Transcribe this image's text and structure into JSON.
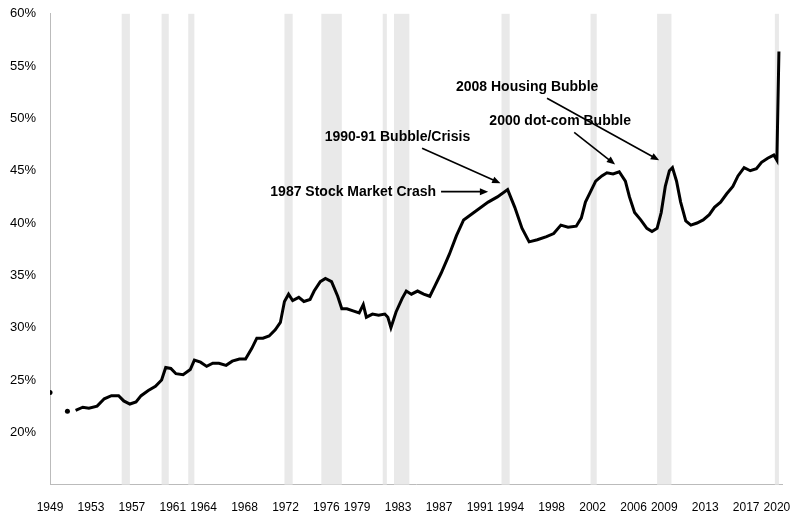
{
  "chart_data": {
    "type": "line",
    "x": [
      1949.0,
      1950.0,
      1950.7,
      1951.1,
      1951.5,
      1952.2,
      1952.8,
      1953.6,
      1954.3,
      1955.0,
      1955.7,
      1956.2,
      1956.8,
      1957.4,
      1957.9,
      1958.6,
      1959.3,
      1959.9,
      1960.3,
      1960.8,
      1961.3,
      1962.0,
      1962.7,
      1963.1,
      1963.7,
      1964.3,
      1964.9,
      1965.5,
      1966.2,
      1966.8,
      1967.5,
      1968.1,
      1968.7,
      1969.2,
      1969.8,
      1970.4,
      1971.0,
      1971.5,
      1971.9,
      1972.3,
      1972.7,
      1973.3,
      1973.8,
      1974.4,
      1974.8,
      1975.4,
      1975.9,
      1976.5,
      1977.1,
      1977.5,
      1978.0,
      1978.6,
      1979.2,
      1979.6,
      1979.9,
      1980.5,
      1981.1,
      1981.7,
      1982.0,
      1982.3,
      1982.8,
      1983.4,
      1983.8,
      1984.3,
      1984.9,
      1985.5,
      1986.1,
      1986.6,
      1987.2,
      1988.0,
      1988.7,
      1989.4,
      1990.4,
      1991.8,
      1992.7,
      1993.7,
      1994.4,
      1995.1,
      1995.8,
      1996.6,
      1997.5,
      1998.2,
      1998.9,
      1999.6,
      2000.4,
      2000.9,
      2001.3,
      2001.8,
      2002.3,
      2002.9,
      2003.4,
      2004.0,
      2004.6,
      2005.2,
      2005.6,
      2006.1,
      2006.7,
      2007.3,
      2007.8,
      2008.3,
      2008.7,
      2009.1,
      2009.5,
      2009.8,
      2010.2,
      2010.6,
      2011.1,
      2011.6,
      2012.2,
      2012.8,
      2013.4,
      2013.9,
      2014.5,
      2015.1,
      2015.7,
      2016.2,
      2016.8,
      2017.4,
      2018.0,
      2018.5,
      2019.1,
      2019.7,
      2020.0,
      2020.2
    ],
    "series": [
      {
        "color": "#000000",
        "values": [
          23.8,
          null,
          22.0,
          null,
          22.1,
          22.4,
          22.3,
          22.5,
          23.2,
          23.5,
          23.5,
          23.0,
          22.7,
          22.9,
          23.5,
          24.0,
          24.4,
          25.0,
          26.2,
          26.1,
          25.6,
          25.5,
          26.0,
          26.9,
          26.7,
          26.3,
          26.6,
          26.6,
          26.4,
          26.8,
          27.0,
          27.0,
          28.0,
          29.0,
          29.0,
          29.2,
          29.8,
          30.5,
          32.5,
          33.2,
          32.6,
          32.9,
          32.5,
          32.7,
          33.5,
          34.4,
          34.7,
          34.4,
          33.0,
          31.8,
          31.8,
          31.6,
          31.4,
          32.2,
          31.0,
          31.3,
          31.2,
          31.3,
          31.0,
          30.0,
          31.5,
          32.8,
          33.5,
          33.2,
          33.5,
          33.2,
          33.0,
          34.0,
          35.2,
          37.0,
          38.8,
          40.3,
          41.0,
          42.0,
          42.5,
          43.2,
          41.5,
          39.5,
          38.2,
          38.4,
          38.7,
          39.0,
          39.8,
          39.6,
          39.7,
          40.5,
          42.0,
          43.0,
          44.0,
          44.5,
          44.8,
          44.7,
          44.9,
          44.0,
          42.5,
          41.0,
          40.3,
          39.5,
          39.2,
          39.5,
          41.0,
          43.5,
          45.0,
          45.3,
          44.0,
          42.0,
          40.2,
          39.8,
          40.0,
          40.3,
          40.8,
          41.5,
          42.0,
          42.8,
          43.5,
          44.5,
          45.3,
          45.0,
          45.2,
          45.8,
          46.2,
          46.5,
          46.0,
          56.4
        ]
      }
    ],
    "xlim": [
      1949,
      2020.5
    ],
    "xticks": [
      1949,
      1953,
      1957,
      1961,
      1964,
      1968,
      1972,
      1976,
      1979,
      1983,
      1987,
      1991,
      1994,
      1998,
      2002,
      2006,
      2009,
      2013,
      2017,
      2020
    ],
    "ylim": [
      15,
      60
    ],
    "yticks": [
      {
        "value": 20,
        "label": "20%"
      },
      {
        "value": 25,
        "label": "25%"
      },
      {
        "value": 30,
        "label": "30%"
      },
      {
        "value": 35,
        "label": "35%"
      },
      {
        "value": 40,
        "label": "40%"
      },
      {
        "value": 45,
        "label": "45%"
      },
      {
        "value": 50,
        "label": "50%"
      },
      {
        "value": 55,
        "label": "55%"
      },
      {
        "value": 60,
        "label": "60%"
      }
    ],
    "recessions": [
      [
        1956.0,
        1956.8
      ],
      [
        1959.9,
        1960.6
      ],
      [
        1962.5,
        1963.1
      ],
      [
        1971.9,
        1972.7
      ],
      [
        1975.5,
        1977.5
      ],
      [
        1981.5,
        1981.9
      ],
      [
        1982.6,
        1984.1
      ],
      [
        1993.1,
        1993.9
      ],
      [
        2001.8,
        2002.4
      ],
      [
        2008.3,
        2009.7
      ],
      [
        2019.8,
        2020.2
      ]
    ],
    "annotations": [
      {
        "text": "2008 Housing Bubble",
        "x": 2008.5,
        "y": 46.0
      },
      {
        "text": "2000 dot-com Bubble",
        "x": 2004.2,
        "y": 45.6
      },
      {
        "text": "1990-91 Bubble/Crisis",
        "x": 1993.0,
        "y": 43.8
      },
      {
        "text": "1987 Stock Market Crash",
        "x": 1991.8,
        "y": 43.0
      }
    ],
    "grid": false,
    "marker": "none",
    "line_style": "solid"
  }
}
